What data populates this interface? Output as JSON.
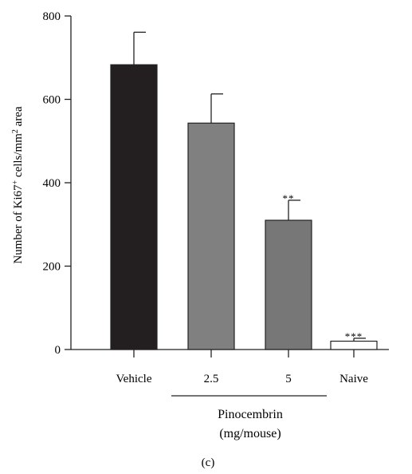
{
  "chart_data": {
    "type": "bar",
    "ylabel": {
      "base": "Number of Ki67",
      "sup": "+",
      "mid": " cells/mm",
      "sup2": "2",
      "end": " area"
    },
    "ylim": [
      0,
      800
    ],
    "yticks": [
      0,
      200,
      400,
      600,
      800
    ],
    "grid": false,
    "categories": [
      "Vehicle",
      "2.5",
      "5",
      "Naive"
    ],
    "values": [
      683,
      543,
      310,
      20
    ],
    "errors": [
      78,
      70,
      48,
      7
    ],
    "significance": [
      "",
      "",
      "**",
      "***"
    ],
    "colors": [
      "#231f20",
      "#808080",
      "#777777",
      "#ffffff"
    ],
    "group_label": {
      "line1": "Pinocembrin",
      "line2": "(mg/mouse)",
      "categories": [
        1,
        2
      ]
    },
    "panel_label": "(c)"
  }
}
